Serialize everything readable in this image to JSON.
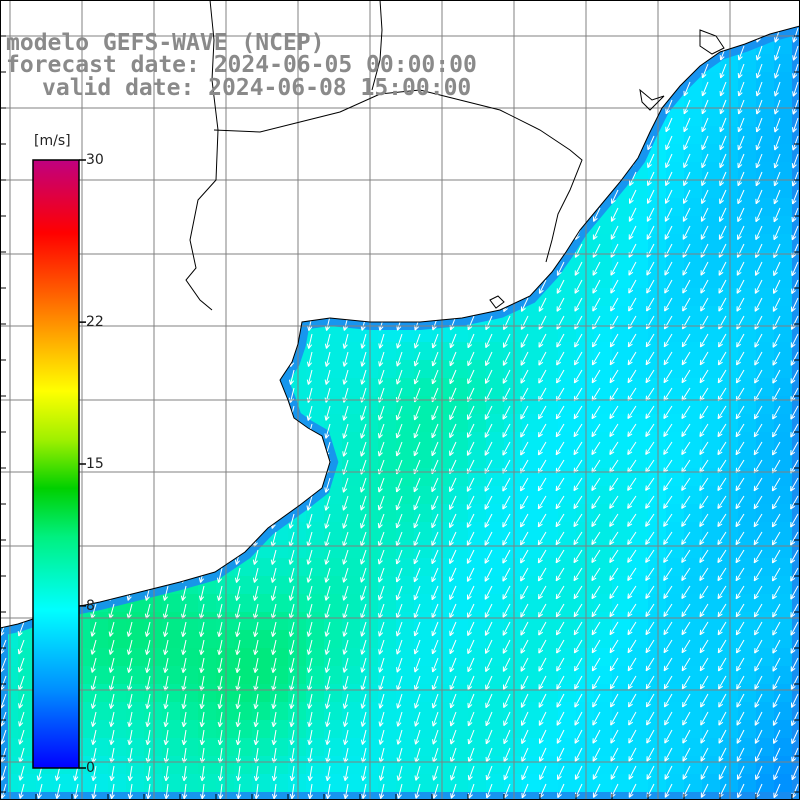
{
  "title": {
    "model": "modelo GEFS-WAVE (NCEP)",
    "forecast_date": "forecast date: 2024-06-05 00:00:00",
    "valid_date": "valid date: 2024-06-08 15:00:00"
  },
  "colorbar": {
    "unit": "[m/s]",
    "ticks": [
      {
        "value": 30,
        "label": "30"
      },
      {
        "value": 22,
        "label": "22"
      },
      {
        "value": 15,
        "label": "15"
      },
      {
        "value": 8,
        "label": "8"
      },
      {
        "value": 0,
        "label": "0"
      }
    ],
    "range": [
      0,
      30
    ],
    "colormap": [
      "#0000ff",
      "#0080ff",
      "#00e0ff",
      "#00ff80",
      "#00e000",
      "#80ff00",
      "#ffff00",
      "#ffa000",
      "#ff4000",
      "#ff0000",
      "#ff0080",
      "#c00080"
    ]
  },
  "field": {
    "variable": "wind speed and direction",
    "typical_speed_mps": 8,
    "max_speed_mps": 12,
    "arrow_direction": "pointing south-southwest"
  },
  "colors": {
    "land": "#ffffff",
    "coastline": "#000000",
    "graticule": "#808080",
    "arrows": "#ffffff"
  }
}
